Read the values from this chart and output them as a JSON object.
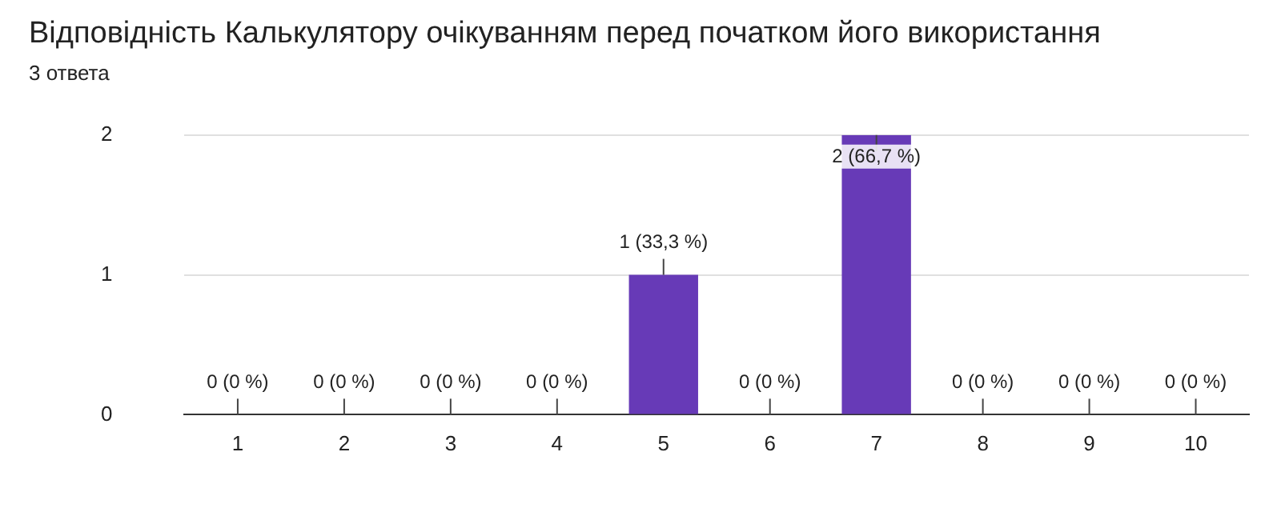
{
  "chart_data": {
    "type": "bar",
    "title": "Відповідність Калькулятору очікуванням перед початком його використання",
    "subtitle": "3 ответа",
    "categories": [
      "1",
      "2",
      "3",
      "4",
      "5",
      "6",
      "7",
      "8",
      "9",
      "10"
    ],
    "values": [
      0,
      0,
      0,
      0,
      1,
      0,
      2,
      0,
      0,
      0
    ],
    "value_labels": [
      "0 (0 %)",
      "0 (0 %)",
      "0 (0 %)",
      "0 (0 %)",
      "1 (33,3 %)",
      "0 (0 %)",
      "2 (66,7 %)",
      "0 (0 %)",
      "0 (0 %)",
      "0 (0 %)"
    ],
    "color": "#673ab7",
    "ylim": [
      0,
      2
    ],
    "yticks": [
      0,
      1,
      2
    ],
    "grid": "y",
    "legend": false
  }
}
